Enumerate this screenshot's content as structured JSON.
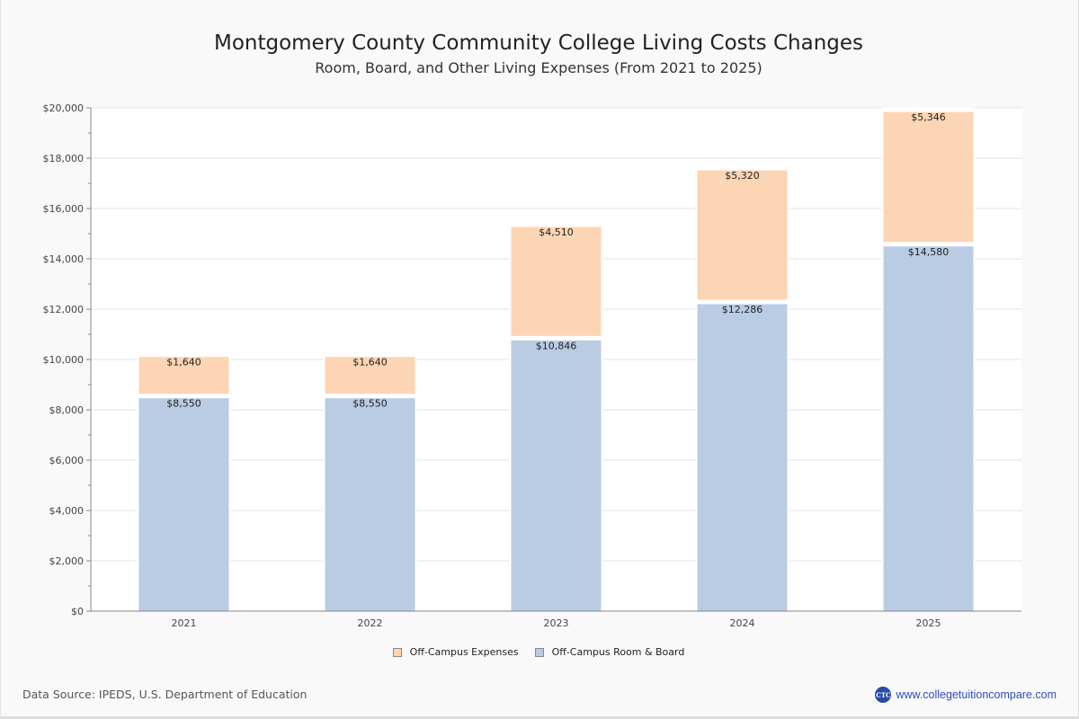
{
  "chart_data": {
    "type": "bar",
    "stacked": true,
    "title": "Montgomery County Community College Living Costs Changes",
    "subtitle": "Room, Board, and Other Living Expenses (From 2021 to 2025)",
    "xlabel": "",
    "ylabel": "",
    "categories": [
      "2021",
      "2022",
      "2023",
      "2024",
      "2025"
    ],
    "series": [
      {
        "name": "Off-Campus Room & Board",
        "color": "#b9cce4",
        "values": [
          8550,
          8550,
          10846,
          12286,
          14580
        ],
        "labels": [
          "$8,550",
          "$8,550",
          "$10,846",
          "$12,286",
          "$14,580"
        ]
      },
      {
        "name": "Off-Campus Expenses",
        "color": "#fcd5b4",
        "values": [
          1640,
          1640,
          4510,
          5320,
          5346
        ],
        "labels": [
          "$1,640",
          "$1,640",
          "$4,510",
          "$5,320",
          "$5,346"
        ]
      }
    ],
    "ylim": [
      0,
      20000
    ],
    "yticks": [
      0,
      2000,
      4000,
      6000,
      8000,
      10000,
      12000,
      14000,
      16000,
      18000,
      20000
    ],
    "ytick_labels": [
      "$0",
      "$2,000",
      "$4,000",
      "$6,000",
      "$8,000",
      "$10,000",
      "$12,000",
      "$14,000",
      "$16,000",
      "$18,000",
      "$20,000"
    ],
    "grid": true,
    "legend_position": "bottom-center"
  },
  "legend": [
    {
      "label": "Off-Campus Expenses",
      "color": "#fcd5b4"
    },
    {
      "label": "Off-Campus Room & Board",
      "color": "#b9cce4"
    }
  ],
  "footer": {
    "source": "Data Source: IPEDS, U.S. Department of Education",
    "brand_logo": "CTC",
    "brand_url": "www.collegetuitioncompare.com"
  }
}
